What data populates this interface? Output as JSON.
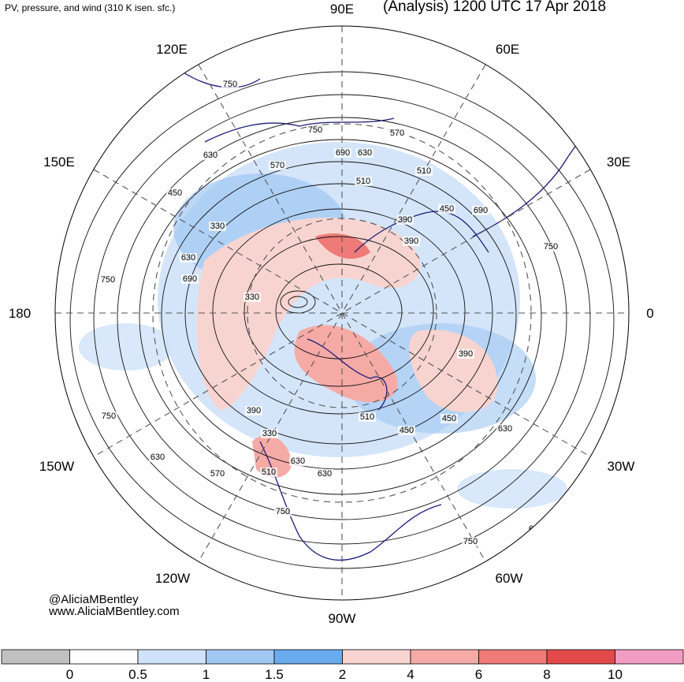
{
  "header": {
    "title_left": "PV, pressure, and wind (310 K isen. sfc.)",
    "title_right": "(Analysis) 1200 UTC 17 Apr 2018"
  },
  "credits": {
    "twitter": "@AliciaMBentley",
    "website": "www.AliciaMBentley.com"
  },
  "map": {
    "projection": "north-polar-stereographic",
    "longitude_labels": [
      "90E",
      "60E",
      "30E",
      "0",
      "30W",
      "60W",
      "90W",
      "120W",
      "150W",
      "180",
      "150E",
      "120E"
    ],
    "pressure_contour_labels": [
      "750",
      "750",
      "690",
      "630",
      "570",
      "510",
      "450",
      "390",
      "330",
      "330",
      "390",
      "450",
      "510",
      "570",
      "630",
      "690",
      "750",
      "750",
      "630",
      "690",
      "750",
      "630",
      "570",
      "510",
      "630",
      "390",
      "330",
      "390",
      "450",
      "510",
      "450",
      "630",
      "690",
      "750",
      "750",
      "630"
    ],
    "colors": {
      "land_outline": "#1a1a7a",
      "contour": "#111111",
      "graticule": "#555555"
    }
  },
  "colorbar": {
    "tick_labels": [
      "0",
      "0.5",
      "1",
      "1.5",
      "2",
      "4",
      "6",
      "8",
      "10"
    ],
    "bins": [
      {
        "color": "#c0c0c0"
      },
      {
        "color": "#ffffff"
      },
      {
        "color": "#cfe2fa"
      },
      {
        "color": "#9fc7f2"
      },
      {
        "color": "#6aaaef"
      },
      {
        "color": "#f8d4d0"
      },
      {
        "color": "#f6aaa6"
      },
      {
        "color": "#ef7a78"
      },
      {
        "color": "#e24a4a"
      },
      {
        "color": "#f29cc4"
      }
    ]
  }
}
